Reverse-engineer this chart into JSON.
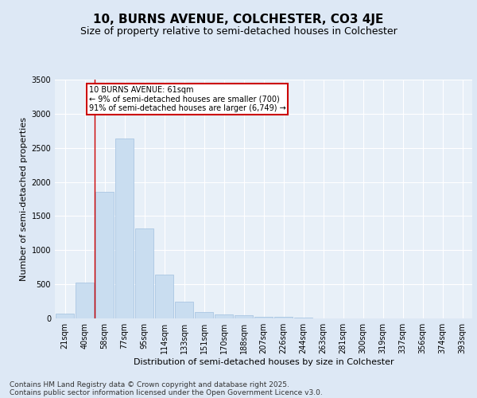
{
  "title_line1": "10, BURNS AVENUE, COLCHESTER, CO3 4JE",
  "title_line2": "Size of property relative to semi-detached houses in Colchester",
  "xlabel": "Distribution of semi-detached houses by size in Colchester",
  "ylabel": "Number of semi-detached properties",
  "categories": [
    "21sqm",
    "40sqm",
    "58sqm",
    "77sqm",
    "95sqm",
    "114sqm",
    "133sqm",
    "151sqm",
    "170sqm",
    "188sqm",
    "207sqm",
    "226sqm",
    "244sqm",
    "263sqm",
    "281sqm",
    "300sqm",
    "319sqm",
    "337sqm",
    "356sqm",
    "374sqm",
    "393sqm"
  ],
  "values": [
    65,
    520,
    1860,
    2640,
    1320,
    640,
    240,
    95,
    60,
    45,
    28,
    18,
    10,
    5,
    3,
    2,
    1,
    1,
    0,
    0,
    0
  ],
  "bar_color": "#c9ddf0",
  "bar_edge_color": "#a0c0df",
  "vline_x_index": 2.0,
  "vline_color": "#cc0000",
  "annotation_text": "10 BURNS AVENUE: 61sqm\n← 9% of semi-detached houses are smaller (700)\n91% of semi-detached houses are larger (6,749) →",
  "annotation_box_color": "#ffffff",
  "annotation_box_edge": "#cc0000",
  "ylim": [
    0,
    3500
  ],
  "yticks": [
    0,
    500,
    1000,
    1500,
    2000,
    2500,
    3000,
    3500
  ],
  "background_color": "#dde8f5",
  "plot_bg_color": "#e8f0f8",
  "grid_color": "#ffffff",
  "footer_line1": "Contains HM Land Registry data © Crown copyright and database right 2025.",
  "footer_line2": "Contains public sector information licensed under the Open Government Licence v3.0.",
  "title_fontsize": 11,
  "subtitle_fontsize": 9,
  "axis_fontsize": 8,
  "tick_fontsize": 7,
  "footer_fontsize": 6.5,
  "annotation_fontsize": 7
}
